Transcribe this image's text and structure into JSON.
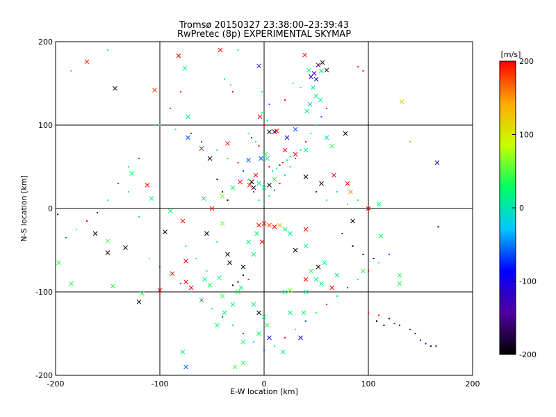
{
  "title_line1": "Tromsø 20150327 23:38:00–23:39:43",
  "title_line2": "RwPretec (8p) EXPERIMENTAL SKYMAP",
  "chart_data": {
    "type": "scatter",
    "xlabel": "E-W location [km]",
    "ylabel": "N-S location [km]",
    "xlim": [
      -200,
      200
    ],
    "ylim": [
      -200,
      200
    ],
    "xticks": [
      "-200",
      "-100",
      "0",
      "100",
      "200"
    ],
    "yticks": [
      "-200",
      "-100",
      "0",
      "100",
      "200"
    ],
    "grid": true,
    "grid_values": [
      -100,
      0,
      100
    ],
    "colorbar": {
      "label": "[m/s]",
      "range": [
        -200,
        200
      ],
      "ticks": [
        "200",
        "100",
        "0",
        "-100",
        "-200"
      ],
      "colors": [
        "#000000",
        "#5000a0",
        "#0000ff",
        "#00c8ff",
        "#00ff60",
        "#c8ff00",
        "#ffaa00",
        "#ff0000"
      ]
    },
    "markers": "x = large echoes, dots = small echoes",
    "points": [
      [
        -170,
        176,
        200,
        "x"
      ],
      [
        -143,
        144,
        -200,
        "x"
      ],
      [
        -105,
        142,
        180,
        "x"
      ],
      [
        -82,
        183,
        200,
        "x"
      ],
      [
        -76,
        168,
        20,
        "x"
      ],
      [
        -73,
        110,
        20,
        "x"
      ],
      [
        -42,
        190,
        200,
        "x"
      ],
      [
        -5,
        171,
        -120,
        "x"
      ],
      [
        -4,
        110,
        200,
        "x"
      ],
      [
        39,
        184,
        200,
        "x"
      ],
      [
        43,
        166,
        30,
        "x"
      ],
      [
        45,
        158,
        -100,
        "x"
      ],
      [
        48,
        162,
        -120,
        "x"
      ],
      [
        50,
        155,
        -80,
        "x"
      ],
      [
        52,
        172,
        -150,
        "x"
      ],
      [
        55,
        165,
        10,
        "x"
      ],
      [
        56,
        175,
        -180,
        "x"
      ],
      [
        60,
        166,
        -190,
        "x"
      ],
      [
        47,
        145,
        10,
        "x"
      ],
      [
        50,
        135,
        20,
        "x"
      ],
      [
        54,
        130,
        0,
        "x"
      ],
      [
        44,
        125,
        -20,
        "x"
      ],
      [
        41,
        117,
        10,
        "x"
      ],
      [
        132,
        128,
        120,
        "x"
      ],
      [
        166,
        55,
        -110,
        "x"
      ],
      [
        -73,
        85,
        -60,
        "x"
      ],
      [
        -60,
        72,
        200,
        "x"
      ],
      [
        -35,
        78,
        190,
        "x"
      ],
      [
        -52,
        60,
        -200,
        "x"
      ],
      [
        -15,
        58,
        -60,
        "x"
      ],
      [
        5,
        92,
        -200,
        "x"
      ],
      [
        10,
        92,
        -180,
        "x"
      ],
      [
        12,
        93,
        200,
        "x"
      ],
      [
        22,
        85,
        -100,
        "x"
      ],
      [
        30,
        95,
        -60,
        "x"
      ],
      [
        60,
        85,
        -20,
        "x"
      ],
      [
        78,
        90,
        -200,
        "x"
      ],
      [
        65,
        75,
        40,
        "x"
      ],
      [
        1,
        65,
        20,
        "x"
      ],
      [
        3,
        60,
        10,
        "x"
      ],
      [
        -8,
        40,
        200,
        "x"
      ],
      [
        -12,
        32,
        -200,
        "x"
      ],
      [
        -10,
        25,
        -180,
        "x"
      ],
      [
        -14,
        28,
        190,
        "x"
      ],
      [
        -5,
        30,
        0,
        "x"
      ],
      [
        0,
        25,
        20,
        "x"
      ],
      [
        5,
        28,
        -200,
        "x"
      ],
      [
        10,
        35,
        30,
        "x"
      ],
      [
        -23,
        32,
        200,
        "x"
      ],
      [
        -30,
        25,
        20,
        "x"
      ],
      [
        40,
        38,
        -200,
        "x"
      ],
      [
        55,
        30,
        -190,
        "x"
      ],
      [
        67,
        40,
        200,
        "x"
      ],
      [
        80,
        30,
        200,
        "x"
      ],
      [
        83,
        20,
        150,
        "x"
      ],
      [
        -127,
        42,
        30,
        "x"
      ],
      [
        -112,
        28,
        200,
        "x"
      ],
      [
        -108,
        12,
        20,
        "x"
      ],
      [
        -90,
        -3,
        20,
        "x"
      ],
      [
        -162,
        -30,
        -200,
        "x"
      ],
      [
        -150,
        -39,
        50,
        "x"
      ],
      [
        -150,
        -53,
        -200,
        "x"
      ],
      [
        -133,
        -47,
        -200,
        "x"
      ],
      [
        -95,
        -28,
        -200,
        "x"
      ],
      [
        -78,
        -15,
        200,
        "x"
      ],
      [
        -55,
        -30,
        -200,
        "x"
      ],
      [
        -40,
        -18,
        60,
        "x"
      ],
      [
        -35,
        -55,
        -200,
        "x"
      ],
      [
        -33,
        -65,
        -200,
        "x"
      ],
      [
        -88,
        -78,
        200,
        "x"
      ],
      [
        -75,
        -63,
        200,
        "x"
      ],
      [
        -75,
        -88,
        200,
        "x"
      ],
      [
        -70,
        -95,
        200,
        "x"
      ],
      [
        -57,
        -85,
        20,
        "x"
      ],
      [
        -52,
        -92,
        30,
        "x"
      ],
      [
        -43,
        -83,
        20,
        "x"
      ],
      [
        -40,
        -105,
        40,
        "x"
      ],
      [
        -22,
        -95,
        30,
        "x"
      ],
      [
        -20,
        -70,
        -200,
        "x"
      ],
      [
        -15,
        -40,
        20,
        "x"
      ],
      [
        -7,
        -30,
        30,
        "x"
      ],
      [
        -5,
        -20,
        200,
        "x"
      ],
      [
        0,
        -18,
        200,
        "x"
      ],
      [
        5,
        -20,
        180,
        "x"
      ],
      [
        10,
        -22,
        200,
        "x"
      ],
      [
        15,
        -20,
        130,
        "x"
      ],
      [
        20,
        -25,
        20,
        "x"
      ],
      [
        25,
        -30,
        10,
        "x"
      ],
      [
        -2,
        -40,
        200,
        "x"
      ],
      [
        -10,
        -55,
        20,
        "x"
      ],
      [
        30,
        -50,
        -200,
        "x"
      ],
      [
        40,
        -45,
        20,
        "x"
      ],
      [
        52,
        -70,
        -200,
        "x"
      ],
      [
        58,
        -65,
        20,
        "x"
      ],
      [
        85,
        -15,
        -200,
        "x"
      ],
      [
        95,
        -75,
        40,
        "x"
      ],
      [
        100,
        0,
        200,
        "x"
      ],
      [
        110,
        5,
        20,
        "x"
      ],
      [
        112,
        -33,
        30,
        "x"
      ],
      [
        130,
        -80,
        40,
        "x"
      ],
      [
        -197,
        -65,
        40,
        "x"
      ],
      [
        -185,
        -90,
        40,
        "x"
      ],
      [
        -100,
        -98,
        200,
        "x"
      ],
      [
        -60,
        -110,
        20,
        "x"
      ],
      [
        -45,
        -140,
        30,
        "x"
      ],
      [
        -38,
        -125,
        20,
        "x"
      ],
      [
        -30,
        -115,
        20,
        "x"
      ],
      [
        -25,
        -100,
        40,
        "x"
      ],
      [
        -10,
        -115,
        20,
        "x"
      ],
      [
        -5,
        -125,
        -200,
        "x"
      ],
      [
        0,
        -130,
        20,
        "x"
      ],
      [
        3,
        -140,
        40,
        "x"
      ],
      [
        5,
        -155,
        -100,
        "x"
      ],
      [
        -5,
        -150,
        30,
        "x"
      ],
      [
        -20,
        -160,
        40,
        "x"
      ],
      [
        -20,
        -185,
        40,
        "x"
      ],
      [
        -28,
        -190,
        50,
        "x"
      ],
      [
        -75,
        -190,
        -60,
        "x"
      ],
      [
        -78,
        -172,
        20,
        "x"
      ],
      [
        18,
        -172,
        20,
        "x"
      ],
      [
        20,
        -100,
        30,
        "x"
      ],
      [
        25,
        -98,
        60,
        "x"
      ],
      [
        40,
        -100,
        20,
        "x"
      ],
      [
        50,
        -85,
        10,
        "x"
      ],
      [
        55,
        -90,
        20,
        "x"
      ],
      [
        38,
        -125,
        30,
        "x"
      ],
      [
        25,
        -125,
        20,
        "x"
      ],
      [
        35,
        -155,
        -100,
        "x"
      ],
      [
        45,
        -75,
        40,
        "x"
      ],
      [
        40,
        -85,
        200,
        "x"
      ],
      [
        65,
        -95,
        200,
        "x"
      ],
      [
        70,
        -80,
        10,
        "x"
      ],
      [
        130,
        -90,
        40,
        "x"
      ],
      [
        -145,
        -93,
        40,
        "x"
      ],
      [
        -117,
        -102,
        40,
        "x"
      ],
      [
        -120,
        -112,
        -200,
        "x"
      ],
      [
        20,
        70,
        200,
        "x"
      ],
      [
        30,
        65,
        200,
        "x"
      ],
      [
        40,
        70,
        10,
        "x"
      ],
      [
        -3,
        60,
        -60,
        "x"
      ],
      [
        40,
        -25,
        200,
        "x"
      ],
      [
        -50,
        0,
        200,
        "x"
      ],
      [
        -58,
        12,
        20,
        "x"
      ],
      [
        -40,
        15,
        60,
        "x"
      ],
      [
        -100,
        100,
        40,
        "."
      ],
      [
        -85,
        95,
        30,
        "."
      ],
      [
        -70,
        90,
        200,
        "."
      ],
      [
        -60,
        80,
        -60,
        "."
      ],
      [
        -45,
        70,
        20,
        "."
      ],
      [
        -35,
        60,
        30,
        "."
      ],
      [
        -25,
        55,
        200,
        "."
      ],
      [
        -20,
        45,
        -60,
        "."
      ],
      [
        -15,
        35,
        30,
        "."
      ],
      [
        -10,
        20,
        200,
        "."
      ],
      [
        -5,
        10,
        20,
        "."
      ],
      [
        0,
        5,
        20,
        "."
      ],
      [
        5,
        15,
        30,
        "."
      ],
      [
        10,
        22,
        -60,
        "."
      ],
      [
        15,
        30,
        200,
        "."
      ],
      [
        20,
        40,
        20,
        "."
      ],
      [
        25,
        50,
        30,
        "."
      ],
      [
        30,
        60,
        -60,
        "."
      ],
      [
        35,
        70,
        20,
        "."
      ],
      [
        40,
        80,
        200,
        "."
      ],
      [
        45,
        90,
        30,
        "."
      ],
      [
        50,
        100,
        20,
        "."
      ],
      [
        55,
        110,
        -60,
        "."
      ],
      [
        60,
        120,
        200,
        "."
      ],
      [
        -120,
        60,
        200,
        "."
      ],
      [
        -130,
        50,
        20,
        "."
      ],
      [
        -140,
        30,
        -60,
        "."
      ],
      [
        -150,
        10,
        30,
        "."
      ],
      [
        -160,
        -5,
        -200,
        "."
      ],
      [
        -170,
        -15,
        200,
        "."
      ],
      [
        -180,
        -25,
        20,
        "."
      ],
      [
        -190,
        -35,
        -60,
        "."
      ],
      [
        -110,
        -60,
        30,
        "."
      ],
      [
        -100,
        -70,
        200,
        "."
      ],
      [
        -90,
        -80,
        20,
        "."
      ],
      [
        -80,
        -90,
        -60,
        "."
      ],
      [
        -70,
        -100,
        30,
        "."
      ],
      [
        -60,
        -110,
        200,
        "."
      ],
      [
        -50,
        -120,
        20,
        "."
      ],
      [
        -40,
        -130,
        -60,
        "."
      ],
      [
        -30,
        -140,
        30,
        "."
      ],
      [
        -20,
        -150,
        200,
        "."
      ],
      [
        -10,
        -160,
        20,
        "."
      ],
      [
        0,
        -170,
        -60,
        "."
      ],
      [
        10,
        -165,
        30,
        "."
      ],
      [
        20,
        -155,
        200,
        "."
      ],
      [
        30,
        -145,
        20,
        "."
      ],
      [
        40,
        -135,
        -60,
        "."
      ],
      [
        50,
        -125,
        30,
        "."
      ],
      [
        60,
        -115,
        200,
        "."
      ],
      [
        70,
        -105,
        20,
        "."
      ],
      [
        80,
        -95,
        -60,
        "."
      ],
      [
        90,
        -85,
        30,
        "."
      ],
      [
        100,
        -75,
        200,
        "."
      ],
      [
        110,
        -65,
        20,
        "."
      ],
      [
        120,
        -55,
        -60,
        "."
      ],
      [
        100,
        -125,
        200,
        "."
      ],
      [
        110,
        -128,
        200,
        "."
      ],
      [
        120,
        -132,
        -200,
        "."
      ],
      [
        125,
        -138,
        -60,
        "."
      ],
      [
        130,
        -140,
        -80,
        "."
      ],
      [
        140,
        -145,
        -120,
        "."
      ],
      [
        145,
        -150,
        -150,
        "."
      ],
      [
        150,
        -158,
        -100,
        "."
      ],
      [
        155,
        -162,
        -170,
        "."
      ],
      [
        160,
        -165,
        -180,
        "."
      ],
      [
        165,
        -165,
        -120,
        "."
      ],
      [
        108,
        -135,
        -200,
        "."
      ],
      [
        115,
        -140,
        -190,
        "."
      ],
      [
        -150,
        190,
        30,
        "."
      ],
      [
        -80,
        140,
        200,
        "."
      ],
      [
        -90,
        120,
        200,
        "."
      ],
      [
        -25,
        190,
        20,
        "."
      ],
      [
        20,
        130,
        200,
        "."
      ],
      [
        35,
        145,
        30,
        "."
      ],
      [
        90,
        170,
        200,
        "."
      ],
      [
        95,
        165,
        200,
        "."
      ],
      [
        -105,
        100,
        30,
        "."
      ],
      [
        140,
        80,
        150,
        "."
      ],
      [
        167,
        -22,
        -200,
        "."
      ],
      [
        -198,
        -7,
        -200,
        "."
      ],
      [
        -185,
        165,
        20,
        "."
      ],
      [
        -130,
        20,
        20,
        "."
      ],
      [
        -120,
        -10,
        20,
        "."
      ],
      [
        -45,
        -40,
        20,
        "."
      ],
      [
        -55,
        -75,
        20,
        "."
      ],
      [
        -65,
        -60,
        20,
        "."
      ],
      [
        -75,
        -45,
        20,
        "."
      ],
      [
        70,
        20,
        20,
        "."
      ],
      [
        60,
        10,
        30,
        "."
      ],
      [
        80,
        5,
        20,
        "."
      ],
      [
        90,
        10,
        30,
        "."
      ],
      [
        75,
        -30,
        -200,
        "."
      ],
      [
        85,
        -45,
        -200,
        "."
      ],
      [
        95,
        -55,
        -200,
        "."
      ],
      [
        105,
        -60,
        -200,
        "."
      ],
      [
        -45,
        35,
        -200,
        "."
      ],
      [
        -40,
        20,
        -200,
        "."
      ],
      [
        -35,
        10,
        -200,
        "."
      ],
      [
        50,
        20,
        -150,
        "."
      ],
      [
        -20,
        -80,
        -200,
        "."
      ],
      [
        -25,
        -88,
        -200,
        "."
      ],
      [
        -30,
        -92,
        -200,
        "."
      ],
      [
        -15,
        -85,
        200,
        "."
      ],
      [
        5,
        50,
        200,
        "."
      ],
      [
        8,
        45,
        20,
        "."
      ],
      [
        12,
        48,
        30,
        "."
      ],
      [
        15,
        52,
        -100,
        "."
      ],
      [
        18,
        55,
        200,
        "."
      ],
      [
        22,
        58,
        20,
        "."
      ],
      [
        25,
        62,
        30,
        "."
      ],
      [
        -5,
        75,
        200,
        "."
      ],
      [
        -8,
        80,
        20,
        "."
      ],
      [
        -12,
        85,
        -200,
        "."
      ],
      [
        -15,
        90,
        30,
        "."
      ],
      [
        0,
        100,
        200,
        "."
      ],
      [
        3,
        105,
        20,
        "."
      ],
      [
        -2,
        115,
        30,
        "."
      ],
      [
        5,
        125,
        -60,
        "."
      ],
      [
        -2,
        140,
        20,
        "."
      ],
      [
        -30,
        140,
        200,
        "."
      ],
      [
        -32,
        148,
        20,
        "."
      ],
      [
        -38,
        155,
        30,
        "."
      ],
      [
        28,
        150,
        20,
        "."
      ]
    ]
  }
}
